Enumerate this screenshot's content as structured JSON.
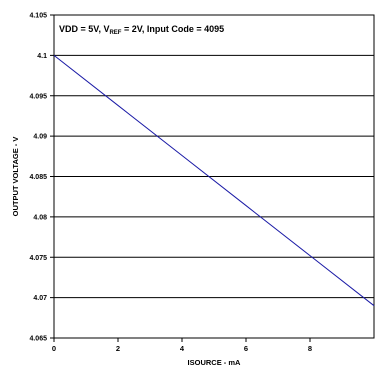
{
  "chart_data": {
    "type": "line",
    "title_parts": {
      "prefix": "VDD = 5V, V",
      "sub": "REF",
      "suffix": " = 2V, Input Code = 4095"
    },
    "xlabel": "ISOURCE - mA",
    "ylabel": "OUTPUT VOLTAGE - V",
    "xlim": [
      0,
      10
    ],
    "ylim": [
      4.065,
      4.105
    ],
    "x_ticks": [
      0,
      2,
      4,
      6,
      8
    ],
    "x_tick_labels": [
      "0",
      "2",
      "4",
      "6",
      "8"
    ],
    "y_ticks": [
      4.065,
      4.07,
      4.075,
      4.08,
      4.085,
      4.09,
      4.095,
      4.1,
      4.105
    ],
    "y_tick_labels": [
      "4.065",
      "4.07",
      "4.075",
      "4.08",
      "4.085",
      "4.09",
      "4.095",
      "4.1",
      "4.105"
    ],
    "grid": "horizontal",
    "series": [
      {
        "color": "#1a1aa6",
        "x": [
          0,
          2,
          4,
          6,
          8,
          10
        ],
        "y": [
          4.1,
          4.0938,
          4.0876,
          4.0814,
          4.0752,
          4.069
        ]
      }
    ]
  }
}
